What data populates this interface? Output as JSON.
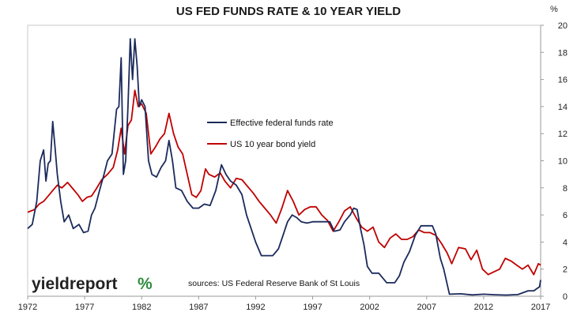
{
  "chart_data": {
    "type": "line",
    "title": "US FED FUNDS RATE & 10 YEAR YIELD",
    "unit": "%",
    "xlim": [
      1972,
      2017
    ],
    "ylim": [
      0,
      20
    ],
    "x_ticks": [
      "1972",
      "1977",
      "1982",
      "1987",
      "1992",
      "1997",
      "2002",
      "2007",
      "2012",
      "2017"
    ],
    "y_ticks": [
      "0",
      "2",
      "4",
      "6",
      "8",
      "10",
      "12",
      "14",
      "16",
      "18",
      "20"
    ],
    "grid": false,
    "legend_position": "center",
    "source": "sources: US Federal Reserve Bank of St Louis",
    "brand": "yieldreport",
    "brand_mark": "%",
    "series": [
      {
        "name": "Effective federal funds rate",
        "color": "#1b2a5c",
        "x": [
          1972.0,
          1972.4,
          1972.8,
          1973.1,
          1973.4,
          1973.6,
          1973.8,
          1974.0,
          1974.2,
          1974.4,
          1974.6,
          1974.9,
          1975.2,
          1975.6,
          1976.0,
          1976.5,
          1976.9,
          1977.3,
          1977.6,
          1977.9,
          1978.3,
          1978.7,
          1979.0,
          1979.4,
          1979.8,
          1980.0,
          1980.2,
          1980.4,
          1980.6,
          1980.8,
          1981.0,
          1981.2,
          1981.4,
          1981.6,
          1981.8,
          1982.0,
          1982.3,
          1982.6,
          1982.9,
          1983.3,
          1983.7,
          1984.1,
          1984.4,
          1984.7,
          1985.0,
          1985.5,
          1986.0,
          1986.5,
          1987.0,
          1987.5,
          1988.0,
          1988.5,
          1989.0,
          1989.4,
          1989.8,
          1990.3,
          1990.8,
          1991.2,
          1991.6,
          1992.0,
          1992.5,
          1993.0,
          1993.5,
          1994.0,
          1994.4,
          1994.8,
          1995.2,
          1995.6,
          1996.0,
          1996.5,
          1997.0,
          1997.5,
          1998.0,
          1998.5,
          1998.9,
          1999.4,
          1999.8,
          2000.3,
          2000.6,
          2000.9,
          2001.2,
          2001.5,
          2001.8,
          2002.2,
          2002.8,
          2003.5,
          2004.2,
          2004.6,
          2005.0,
          2005.5,
          2006.0,
          2006.5,
          2007.0,
          2007.5,
          2007.8,
          2008.2,
          2008.5,
          2008.8,
          2009.0,
          2010.0,
          2011.0,
          2012.0,
          2013.0,
          2014.0,
          2015.0,
          2015.9,
          2016.4,
          2016.9,
          2017.0
        ],
        "values": [
          5.0,
          5.3,
          7.0,
          10.0,
          10.8,
          8.5,
          9.8,
          10.0,
          12.9,
          11.0,
          9.0,
          7.0,
          5.5,
          6.0,
          5.0,
          5.3,
          4.7,
          4.8,
          6.0,
          6.5,
          7.8,
          9.0,
          10.0,
          10.5,
          13.8,
          14.0,
          17.6,
          9.0,
          10.0,
          14.0,
          19.0,
          16.0,
          19.0,
          17.0,
          14.0,
          14.5,
          14.0,
          10.0,
          9.0,
          8.8,
          9.5,
          10.0,
          11.5,
          10.0,
          8.0,
          7.8,
          7.0,
          6.5,
          6.5,
          6.8,
          6.7,
          7.8,
          9.7,
          9.0,
          8.5,
          8.2,
          7.5,
          6.0,
          5.0,
          4.0,
          3.0,
          3.0,
          3.0,
          3.5,
          4.5,
          5.5,
          6.0,
          5.8,
          5.5,
          5.4,
          5.5,
          5.5,
          5.5,
          5.5,
          4.8,
          4.9,
          5.5,
          6.0,
          6.5,
          6.4,
          5.0,
          3.8,
          2.2,
          1.7,
          1.7,
          1.0,
          1.0,
          1.5,
          2.5,
          3.3,
          4.5,
          5.2,
          5.2,
          5.2,
          4.6,
          2.8,
          2.0,
          0.9,
          0.15,
          0.18,
          0.1,
          0.15,
          0.11,
          0.09,
          0.12,
          0.4,
          0.4,
          0.7,
          1.2
        ]
      },
      {
        "name": "US 10 year bond yield",
        "color": "#c00000",
        "x": [
          1972.0,
          1972.3,
          1972.6,
          1973.0,
          1973.4,
          1973.8,
          1974.2,
          1974.6,
          1975.0,
          1975.5,
          1976.0,
          1976.4,
          1976.8,
          1977.2,
          1977.6,
          1978.0,
          1978.5,
          1979.0,
          1979.5,
          1979.9,
          1980.2,
          1980.5,
          1980.8,
          1981.1,
          1981.4,
          1981.7,
          1982.0,
          1982.4,
          1982.8,
          1983.2,
          1983.6,
          1984.0,
          1984.4,
          1984.8,
          1985.2,
          1985.6,
          1986.0,
          1986.4,
          1986.8,
          1987.2,
          1987.6,
          1987.9,
          1988.4,
          1988.9,
          1989.3,
          1989.8,
          1990.3,
          1990.8,
          1991.3,
          1991.8,
          1992.3,
          1992.8,
          1993.3,
          1993.8,
          1994.3,
          1994.8,
          1995.3,
          1995.8,
          1996.3,
          1996.8,
          1997.3,
          1997.8,
          1998.3,
          1998.8,
          1999.3,
          1999.8,
          2000.3,
          2000.8,
          2001.3,
          2001.8,
          2002.3,
          2002.8,
          2003.3,
          2003.8,
          2004.3,
          2004.8,
          2005.3,
          2005.8,
          2006.3,
          2006.8,
          2007.3,
          2007.8,
          2008.3,
          2008.8,
          2009.2,
          2009.8,
          2010.4,
          2010.9,
          2011.4,
          2011.9,
          2012.4,
          2012.9,
          2013.4,
          2013.9,
          2014.4,
          2014.9,
          2015.4,
          2015.9,
          2016.4,
          2016.8,
          2017.0
        ],
        "values": [
          6.2,
          6.3,
          6.4,
          6.8,
          7.0,
          7.4,
          7.8,
          8.2,
          8.0,
          8.4,
          7.9,
          7.5,
          7.0,
          7.3,
          7.4,
          7.9,
          8.6,
          9.0,
          9.5,
          10.8,
          12.4,
          10.5,
          12.6,
          13.0,
          15.2,
          14.0,
          14.2,
          13.5,
          10.5,
          11.0,
          11.6,
          12.0,
          13.5,
          12.0,
          11.0,
          10.5,
          9.0,
          7.5,
          7.3,
          7.8,
          9.4,
          9.0,
          8.8,
          9.1,
          8.5,
          8.0,
          8.7,
          8.6,
          8.1,
          7.6,
          7.0,
          6.5,
          6.0,
          5.4,
          6.5,
          7.8,
          7.0,
          6.0,
          6.4,
          6.6,
          6.6,
          6.0,
          5.6,
          4.8,
          5.5,
          6.3,
          6.6,
          5.8,
          5.1,
          4.8,
          5.1,
          4.0,
          3.6,
          4.3,
          4.6,
          4.2,
          4.2,
          4.4,
          4.9,
          4.7,
          4.7,
          4.5,
          3.9,
          3.2,
          2.4,
          3.6,
          3.5,
          2.7,
          3.4,
          2.0,
          1.6,
          1.8,
          2.0,
          2.8,
          2.6,
          2.3,
          2.0,
          2.3,
          1.6,
          2.4,
          2.3
        ]
      }
    ]
  }
}
